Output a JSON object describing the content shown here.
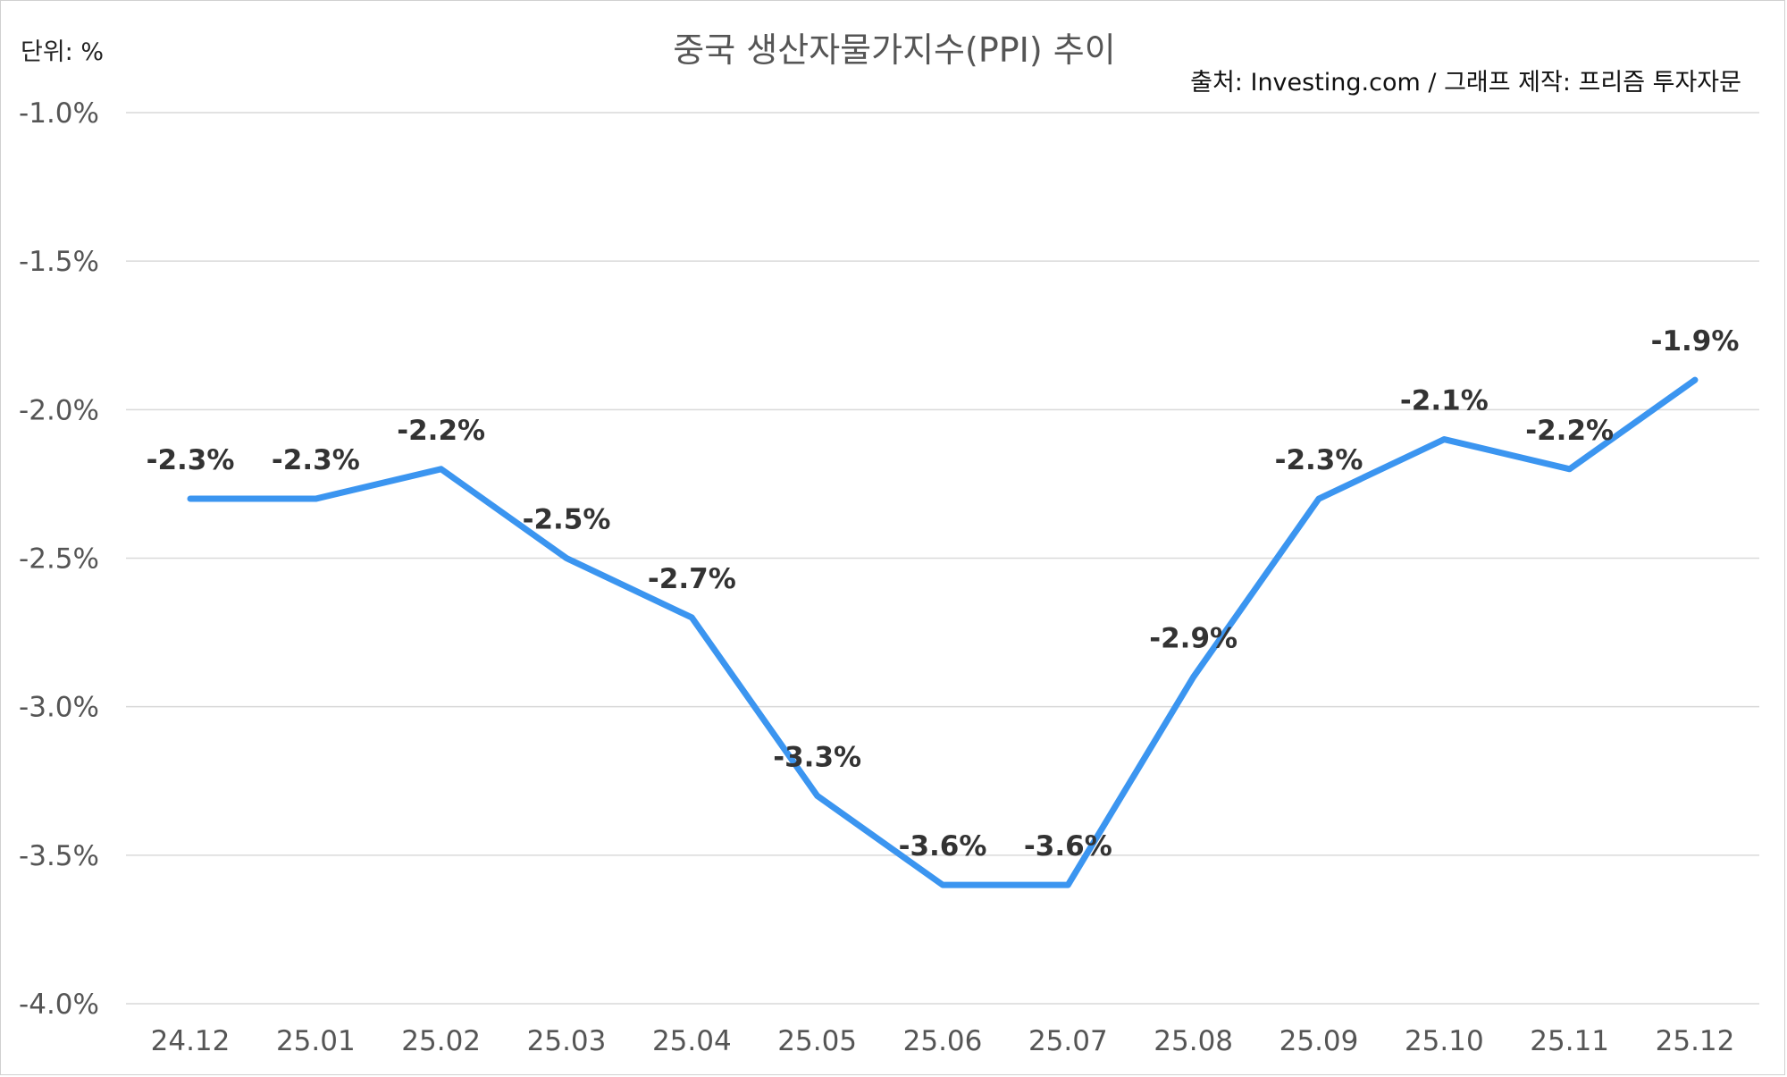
{
  "header": {
    "unit_label": "단위: %",
    "title": "중국 생산자물가지수(PPI) 추이",
    "source": "출처: Investing.com / 그래프 제작: 프리즘 투자자문"
  },
  "colors": {
    "line": "#3b95f0",
    "grid": "#d9d9d9",
    "tick_text": "#555555",
    "data_label_text": "#333333"
  },
  "chart_data": {
    "type": "line",
    "title": "중국 생산자물가지수(PPI) 추이",
    "xlabel": "",
    "ylabel": "",
    "categories": [
      "24.12",
      "25.01",
      "25.02",
      "25.03",
      "25.04",
      "25.05",
      "25.06",
      "25.07",
      "25.08",
      "25.09",
      "25.10",
      "25.11",
      "25.12"
    ],
    "series": [
      {
        "values": [
          -2.3,
          -2.3,
          -2.2,
          -2.5,
          -2.7,
          -3.3,
          -3.6,
          -3.6,
          -2.9,
          -2.3,
          -2.1,
          -2.2,
          -1.9
        ]
      }
    ],
    "data_labels": [
      "-2.3%",
      "-2.3%",
      "-2.2%",
      "-2.5%",
      "-2.7%",
      "-3.3%",
      "-3.6%",
      "-3.6%",
      "-2.9%",
      "-2.3%",
      "-2.1%",
      "-2.2%",
      "-1.9%"
    ],
    "ylim": [
      -4.0,
      -1.0
    ],
    "yticks": [
      -1.0,
      -1.5,
      -2.0,
      -2.5,
      -3.0,
      -3.5,
      -4.0
    ],
    "ytick_labels": [
      "-1.0%",
      "-1.5%",
      "-2.0%",
      "-2.5%",
      "-3.0%",
      "-3.5%",
      "-4.0%"
    ],
    "grid": true,
    "legend": "none"
  }
}
